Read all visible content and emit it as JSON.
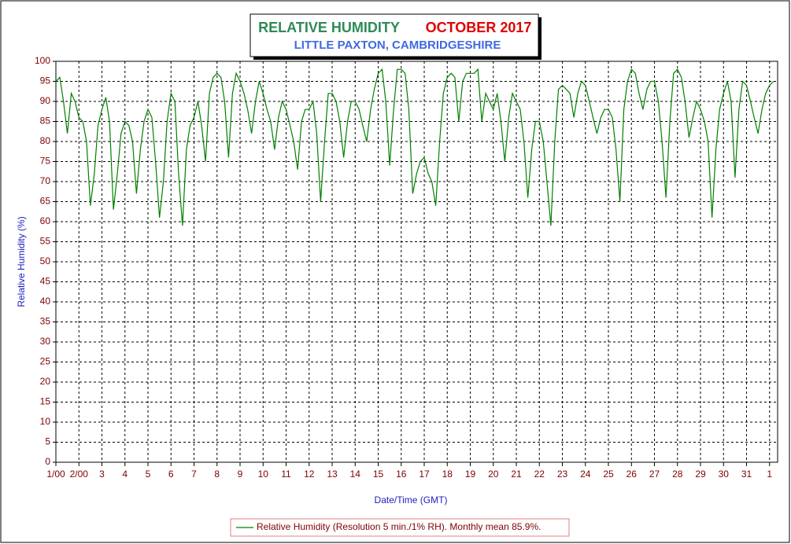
{
  "chart_data": {
    "type": "line",
    "title": "RELATIVE HUMIDITY",
    "period": "OCTOBER 2017",
    "subtitle": "LITTLE PAXTON, CAMBRIDGESHIRE",
    "x_label": "Date/Time (GMT)",
    "y_label": "Relative Humidity (%)",
    "xlim": [
      0,
      31.35
    ],
    "ylim": [
      0,
      100
    ],
    "yticks": [
      0,
      5,
      10,
      15,
      20,
      25,
      30,
      35,
      40,
      45,
      50,
      55,
      60,
      65,
      70,
      75,
      80,
      85,
      90,
      95,
      100
    ],
    "xticks": [
      {
        "value": 0,
        "label": "1/00"
      },
      {
        "value": 1,
        "label": "2/00"
      },
      {
        "value": 2,
        "label": "3"
      },
      {
        "value": 3,
        "label": "4"
      },
      {
        "value": 4,
        "label": "5"
      },
      {
        "value": 5,
        "label": "6"
      },
      {
        "value": 6,
        "label": "7"
      },
      {
        "value": 7,
        "label": "8"
      },
      {
        "value": 8,
        "label": "9"
      },
      {
        "value": 9,
        "label": "10"
      },
      {
        "value": 10,
        "label": "11"
      },
      {
        "value": 11,
        "label": "12"
      },
      {
        "value": 12,
        "label": "13"
      },
      {
        "value": 13,
        "label": "14"
      },
      {
        "value": 14,
        "label": "15"
      },
      {
        "value": 15,
        "label": "16"
      },
      {
        "value": 16,
        "label": "17"
      },
      {
        "value": 17,
        "label": "18"
      },
      {
        "value": 18,
        "label": "19"
      },
      {
        "value": 19,
        "label": "20"
      },
      {
        "value": 20,
        "label": "21"
      },
      {
        "value": 21,
        "label": "22"
      },
      {
        "value": 22,
        "label": "23"
      },
      {
        "value": 23,
        "label": "24"
      },
      {
        "value": 24,
        "label": "25"
      },
      {
        "value": 25,
        "label": "26"
      },
      {
        "value": 26,
        "label": "27"
      },
      {
        "value": 27,
        "label": "28"
      },
      {
        "value": 28,
        "label": "29"
      },
      {
        "value": 29,
        "label": "30"
      },
      {
        "value": 30,
        "label": "31"
      },
      {
        "value": 31,
        "label": "1"
      }
    ],
    "grid": true,
    "x": [
      0,
      0.17,
      0.33,
      0.5,
      0.67,
      0.83,
      1,
      1.17,
      1.33,
      1.5,
      1.67,
      1.83,
      2,
      2.17,
      2.33,
      2.5,
      2.67,
      2.83,
      3,
      3.17,
      3.33,
      3.5,
      3.67,
      3.83,
      4,
      4.17,
      4.33,
      4.5,
      4.67,
      4.83,
      5,
      5.17,
      5.33,
      5.5,
      5.67,
      5.83,
      6,
      6.17,
      6.33,
      6.5,
      6.67,
      6.83,
      7,
      7.17,
      7.33,
      7.5,
      7.67,
      7.83,
      8,
      8.17,
      8.33,
      8.5,
      8.67,
      8.83,
      9,
      9.17,
      9.33,
      9.5,
      9.67,
      9.83,
      10,
      10.17,
      10.33,
      10.5,
      10.67,
      10.83,
      11,
      11.17,
      11.33,
      11.5,
      11.67,
      11.83,
      12,
      12.17,
      12.33,
      12.5,
      12.67,
      12.83,
      13,
      13.17,
      13.33,
      13.5,
      13.67,
      13.83,
      14,
      14.17,
      14.33,
      14.5,
      14.67,
      14.83,
      15,
      15.17,
      15.33,
      15.5,
      15.67,
      15.83,
      16,
      16.17,
      16.33,
      16.5,
      16.67,
      16.83,
      17,
      17.17,
      17.33,
      17.5,
      17.67,
      17.83,
      18,
      18.17,
      18.33,
      18.5,
      18.67,
      18.83,
      19,
      19.17,
      19.33,
      19.5,
      19.67,
      19.83,
      20,
      20.17,
      20.33,
      20.5,
      20.67,
      20.83,
      21,
      21.17,
      21.33,
      21.5,
      21.67,
      21.83,
      22,
      22.17,
      22.33,
      22.5,
      22.67,
      22.83,
      23,
      23.17,
      23.33,
      23.5,
      23.67,
      23.83,
      24,
      24.17,
      24.33,
      24.5,
      24.67,
      24.83,
      25,
      25.17,
      25.33,
      25.5,
      25.67,
      25.83,
      26,
      26.17,
      26.33,
      26.5,
      26.67,
      26.83,
      27,
      27.17,
      27.33,
      27.5,
      27.67,
      27.83,
      28,
      28.17,
      28.33,
      28.5,
      28.67,
      28.83,
      29,
      29.17,
      29.33,
      29.5,
      29.67,
      29.83,
      30,
      30.17,
      30.33,
      30.5,
      30.67,
      30.83,
      31,
      31.17
    ],
    "series": [
      {
        "name": "Relative Humidity (Resolution 5 min./1% RH). Monthly mean 85.9%.",
        "color": "#008000",
        "values": [
          95,
          96,
          90,
          82,
          92,
          90,
          86,
          85,
          80,
          64,
          72,
          84,
          88,
          91,
          85,
          63,
          72,
          82,
          85,
          84,
          80,
          67,
          78,
          85,
          88,
          86,
          75,
          61,
          70,
          85,
          92,
          90,
          72,
          59,
          78,
          84,
          86,
          90,
          84,
          75,
          92,
          96,
          97,
          96,
          90,
          76,
          92,
          97,
          95,
          92,
          88,
          82,
          90,
          95,
          92,
          88,
          85,
          78,
          86,
          90,
          88,
          84,
          80,
          73,
          85,
          88,
          88,
          90,
          82,
          65,
          80,
          92,
          92,
          90,
          85,
          76,
          85,
          90,
          90,
          88,
          84,
          80,
          88,
          93,
          97,
          98,
          90,
          74,
          88,
          98,
          98,
          97,
          88,
          67,
          72,
          75,
          76,
          72,
          70,
          64,
          80,
          92,
          96,
          97,
          96,
          85,
          95,
          97,
          97,
          97,
          98,
          85,
          92,
          90,
          88,
          92,
          85,
          75,
          86,
          92,
          90,
          88,
          80,
          66,
          78,
          85,
          85,
          80,
          70,
          59,
          80,
          93,
          94,
          93,
          92,
          86,
          92,
          95,
          94,
          90,
          86,
          82,
          86,
          88,
          88,
          86,
          78,
          65,
          88,
          95,
          98,
          97,
          92,
          88,
          93,
          95,
          95,
          90,
          80,
          66,
          85,
          97,
          98,
          96,
          90,
          81,
          86,
          90,
          88,
          85,
          80,
          61,
          78,
          88,
          92,
          95,
          90,
          71,
          88,
          95,
          94,
          90,
          86,
          82,
          88,
          92,
          94,
          95
        ]
      }
    ]
  }
}
